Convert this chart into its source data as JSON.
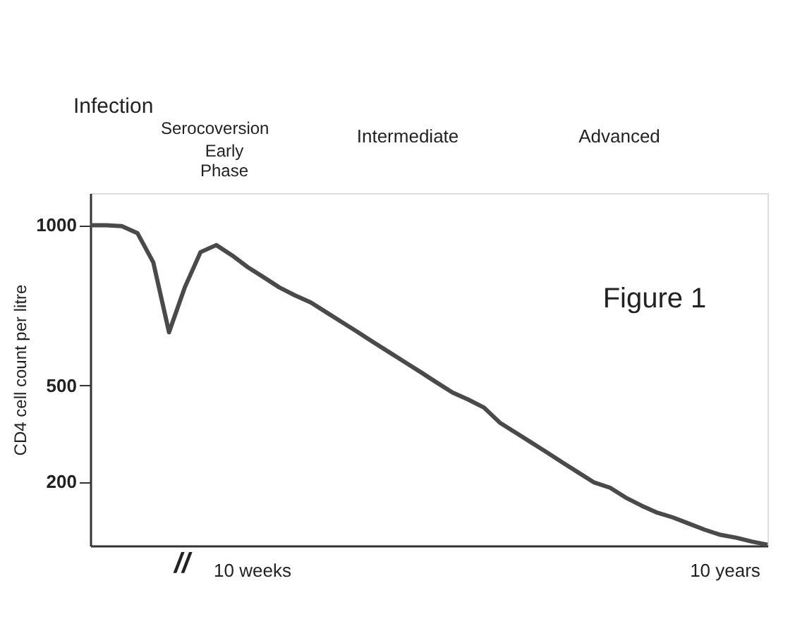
{
  "chart_data": {
    "type": "line",
    "ylabel": "CD4 cell count per litre",
    "categories": [
      null,
      null,
      null,
      null,
      null,
      null,
      null,
      null,
      null,
      null,
      null,
      null,
      null,
      null,
      null,
      null,
      null,
      null,
      null,
      null,
      null,
      null,
      null,
      null,
      null,
      null,
      null,
      null,
      null,
      null,
      null,
      null,
      null,
      null,
      null,
      null,
      null,
      null,
      null,
      null,
      null,
      null,
      null,
      null
    ],
    "series": [
      {
        "color": "#4a4a4a",
        "values": [
          1000,
          1000,
          997,
          975,
          884,
          666,
          806,
          916,
          938,
          906,
          869,
          838,
          806,
          781,
          759,
          728,
          697,
          666,
          634,
          603,
          572,
          541,
          509,
          478,
          456,
          431,
          384,
          353,
          322,
          291,
          259,
          228,
          197,
          181,
          150,
          125,
          103,
          88,
          69,
          50,
          34,
          25,
          13,
          3
        ]
      }
    ],
    "ylim": [
      0,
      1100
    ],
    "yticks": [
      200,
      500,
      1000
    ],
    "tick_labels": "y",
    "grid": false,
    "marker": "none",
    "line_style": "solid",
    "annotations": [
      "Infection",
      "Serocoversion",
      "Early\nPhase",
      "Intermediate",
      "Advanced",
      "Figure 1",
      "//",
      "10 weeks",
      "10 years"
    ]
  }
}
